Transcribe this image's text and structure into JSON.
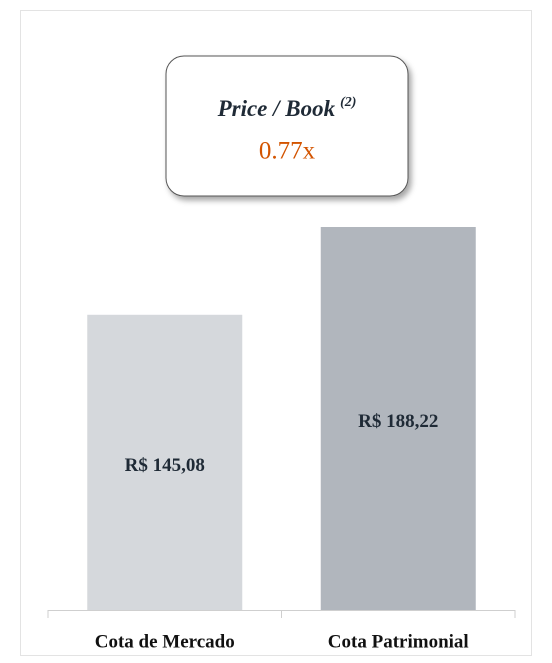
{
  "chart_data": {
    "type": "bar",
    "categories": [
      "Cota de Mercado",
      "Cota Patrimonial"
    ],
    "values": [
      145.08,
      188.22
    ],
    "value_labels": [
      "R$ 145,08",
      "R$ 188,22"
    ],
    "colors": [
      "#d5d8dc",
      "#b1b6bd"
    ],
    "annotation": {
      "title": "Price / Book",
      "footnote": "(2)",
      "value": "0.77x"
    }
  }
}
